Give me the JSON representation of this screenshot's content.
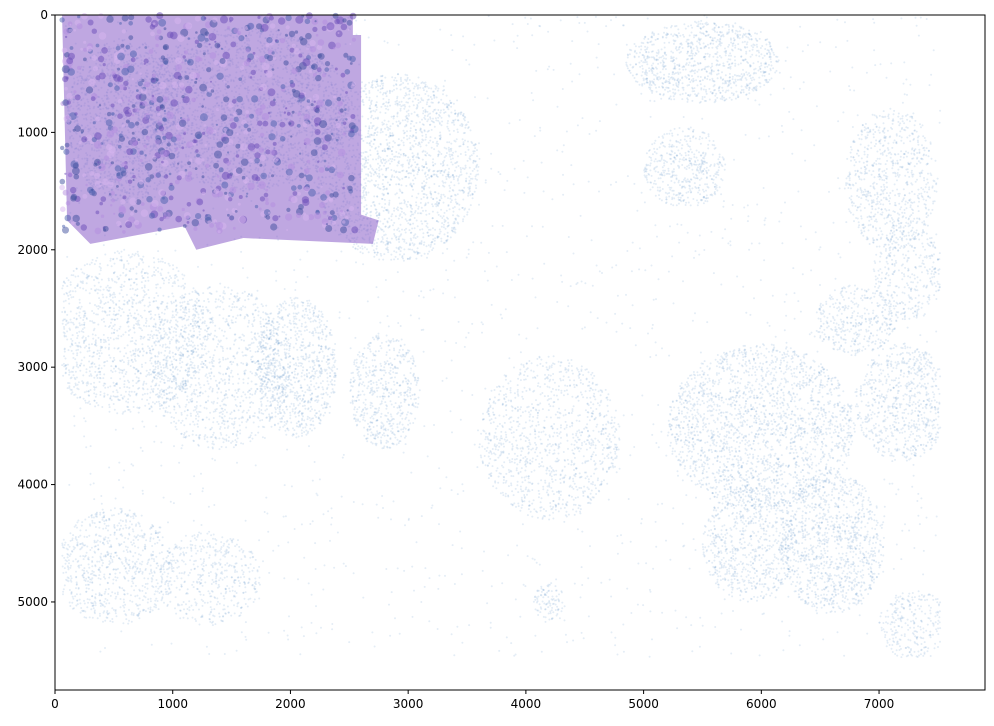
{
  "chart_data": {
    "type": "scatter",
    "title": "",
    "xlabel": "",
    "ylabel": "",
    "xlim": [
      0,
      7900
    ],
    "ylim": [
      5750,
      0
    ],
    "y_inverted": true,
    "grid": false,
    "legend": "none",
    "x_ticks": [
      0,
      1000,
      2000,
      3000,
      4000,
      5000,
      6000,
      7000
    ],
    "y_ticks": [
      0,
      1000,
      2000,
      3000,
      4000,
      5000
    ],
    "x_tick_labels": [
      "0",
      "1000",
      "2000",
      "3000",
      "4000",
      "5000",
      "6000",
      "7000"
    ],
    "y_tick_labels": [
      "0",
      "1000",
      "2000",
      "3000",
      "4000",
      "5000"
    ],
    "point_color": "#4a89c0",
    "point_alpha": 0.15,
    "data_extent": {
      "x": [
        60,
        7520
      ],
      "y": [
        0,
        5470
      ]
    },
    "overlay_image": {
      "description_color": "#8b5fc9",
      "x_range": [
        60,
        2700
      ],
      "y_range": [
        0,
        2000
      ]
    },
    "series": [
      {
        "clusters": [
          {
            "x": 600,
            "y": 900,
            "rx": 500,
            "ry": 700,
            "density": 0.9
          },
          {
            "x": 1600,
            "y": 800,
            "rx": 900,
            "ry": 700,
            "density": 0.8
          },
          {
            "x": 2900,
            "y": 1300,
            "rx": 700,
            "ry": 800,
            "density": 0.75
          },
          {
            "x": 600,
            "y": 2700,
            "rx": 700,
            "ry": 700,
            "density": 0.6
          },
          {
            "x": 1400,
            "y": 3000,
            "rx": 600,
            "ry": 700,
            "density": 0.55
          },
          {
            "x": 2050,
            "y": 3000,
            "rx": 350,
            "ry": 600,
            "density": 0.9
          },
          {
            "x": 2800,
            "y": 3200,
            "rx": 300,
            "ry": 500,
            "density": 0.8
          },
          {
            "x": 500,
            "y": 4700,
            "rx": 500,
            "ry": 500,
            "density": 0.65
          },
          {
            "x": 1300,
            "y": 4800,
            "rx": 450,
            "ry": 400,
            "density": 0.55
          },
          {
            "x": 5500,
            "y": 400,
            "rx": 650,
            "ry": 350,
            "density": 0.9
          },
          {
            "x": 5350,
            "y": 1300,
            "rx": 350,
            "ry": 350,
            "density": 0.8
          },
          {
            "x": 7100,
            "y": 1400,
            "rx": 400,
            "ry": 600,
            "density": 0.65
          },
          {
            "x": 7250,
            "y": 2200,
            "rx": 300,
            "ry": 400,
            "density": 0.6
          },
          {
            "x": 6800,
            "y": 2600,
            "rx": 350,
            "ry": 300,
            "density": 0.75
          },
          {
            "x": 6000,
            "y": 3500,
            "rx": 800,
            "ry": 700,
            "density": 0.8
          },
          {
            "x": 7200,
            "y": 3300,
            "rx": 400,
            "ry": 500,
            "density": 0.8
          },
          {
            "x": 5900,
            "y": 4500,
            "rx": 400,
            "ry": 500,
            "density": 0.75
          },
          {
            "x": 6600,
            "y": 4500,
            "rx": 450,
            "ry": 600,
            "density": 0.85
          },
          {
            "x": 7300,
            "y": 5200,
            "rx": 300,
            "ry": 300,
            "density": 0.7
          },
          {
            "x": 4200,
            "y": 3600,
            "rx": 600,
            "ry": 700,
            "density": 0.55
          },
          {
            "x": 4200,
            "y": 5000,
            "rx": 150,
            "ry": 150,
            "density": 0.9
          }
        ],
        "background_density": 0.25
      }
    ]
  }
}
